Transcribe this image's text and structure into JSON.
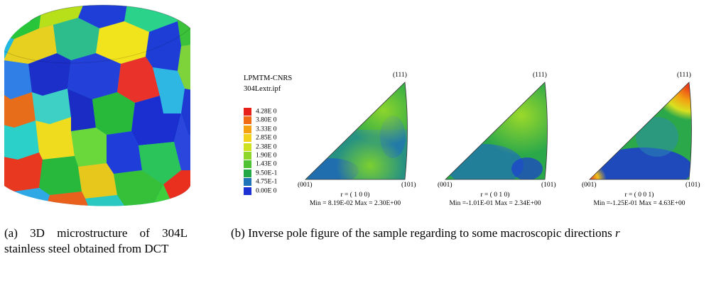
{
  "subfigure_a": {
    "caption": "(a) 3D microstructure of 304L stainless steel obtained from DCT"
  },
  "subfigure_b": {
    "caption_prefix": "(b) Inverse pole figure of the sample regarding to some macroscopic directions ",
    "caption_var": "r",
    "legend": {
      "title_line1": "LPMTM-CNRS",
      "title_line2": "304Lextr.ipf",
      "entries": [
        {
          "label": "4.28E 0",
          "color": "#e8201a"
        },
        {
          "label": "3.80E 0",
          "color": "#ef6a12"
        },
        {
          "label": "3.33E 0",
          "color": "#f5a10f"
        },
        {
          "label": "2.85E 0",
          "color": "#f2d21a"
        },
        {
          "label": "2.38E 0",
          "color": "#cfe221"
        },
        {
          "label": "1.90E 0",
          "color": "#8fd62a"
        },
        {
          "label": "1.43E 0",
          "color": "#4fc233"
        },
        {
          "label": "9.50E-1",
          "color": "#22a844"
        },
        {
          "label": "4.75E-1",
          "color": "#1f74b8"
        },
        {
          "label": "0.00E 0",
          "color": "#1d32d2"
        }
      ]
    },
    "ipf": [
      {
        "corner_001": "(001)",
        "corner_101": "(101)",
        "corner_111": "(111)",
        "direction": "r = ( 1 0 0)",
        "stats": "Min = 8.19E-02 Max = 2.30E+00"
      },
      {
        "corner_001": "(001)",
        "corner_101": "(101)",
        "corner_111": "(111)",
        "direction": "r = ( 0 1 0)",
        "stats": "Min =-1.01E-01 Max = 2.34E+00"
      },
      {
        "corner_001": "(001)",
        "corner_101": "(101)",
        "corner_111": "(111)",
        "direction": "r = ( 0 0 1)",
        "stats": "Min =-1.25E-01 Max = 4.63E+00"
      }
    ]
  }
}
